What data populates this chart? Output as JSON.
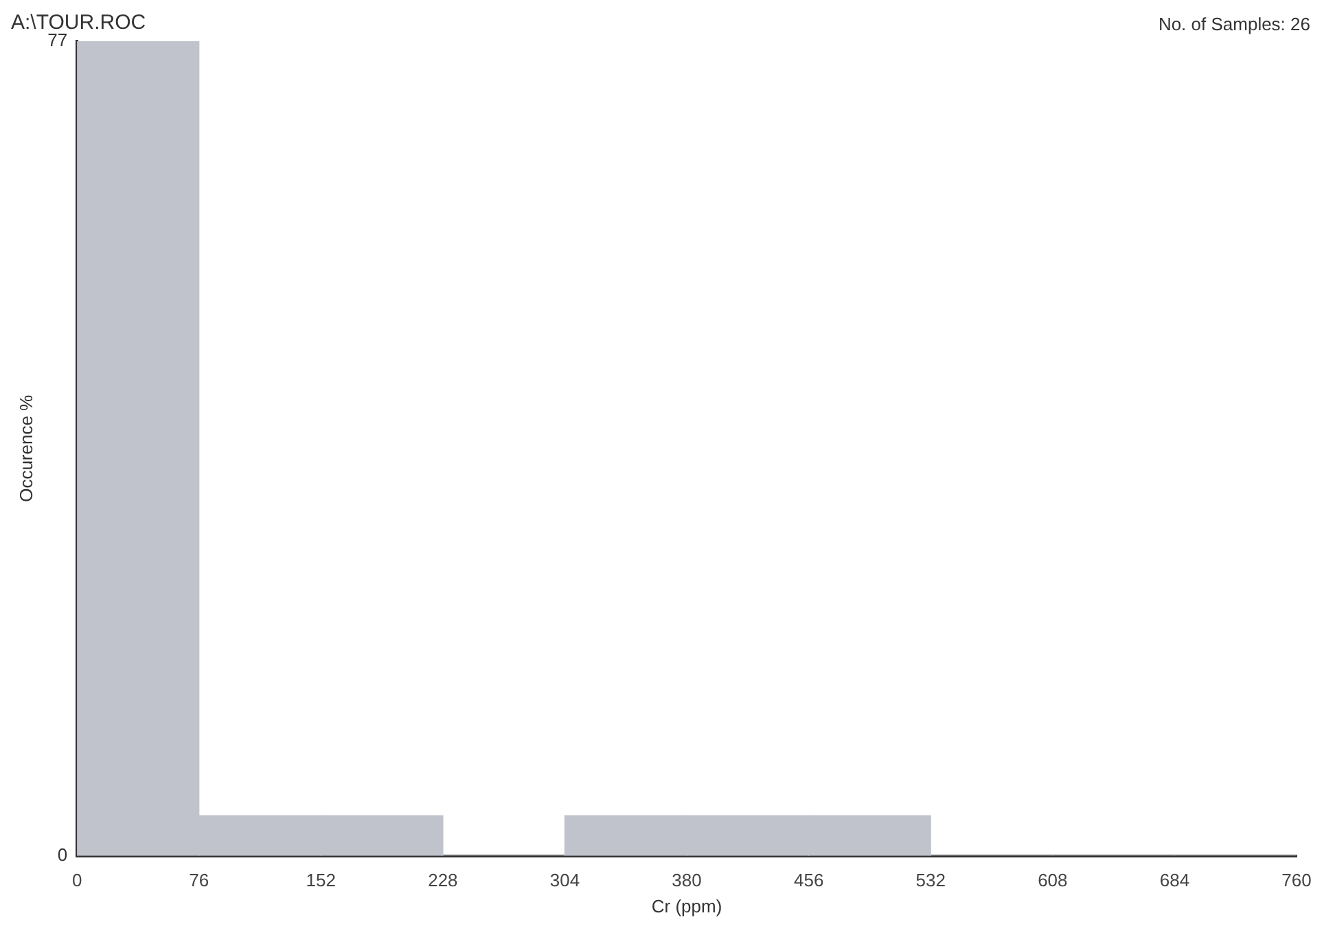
{
  "chart_data": {
    "type": "histogram",
    "title": "A:\\TOUR.ROC",
    "annotations": [
      "No. of Samples: 26"
    ],
    "xlabel": "Cr (ppm)",
    "ylabel": "Occurence %",
    "bins": [
      0,
      76,
      152,
      228,
      304,
      380,
      456,
      532,
      608,
      684,
      760
    ],
    "values": [
      77,
      3.8,
      3.8,
      0,
      3.8,
      3.8,
      3.8,
      0,
      0,
      0
    ],
    "color": "#c0c3cc",
    "xlim": [
      0,
      760
    ],
    "xticks": [
      0,
      76,
      152,
      228,
      304,
      380,
      456,
      532,
      608,
      684,
      760
    ],
    "ylim": [
      0,
      77
    ],
    "yticks": [
      0,
      77
    ],
    "grid": false,
    "legend": false
  }
}
